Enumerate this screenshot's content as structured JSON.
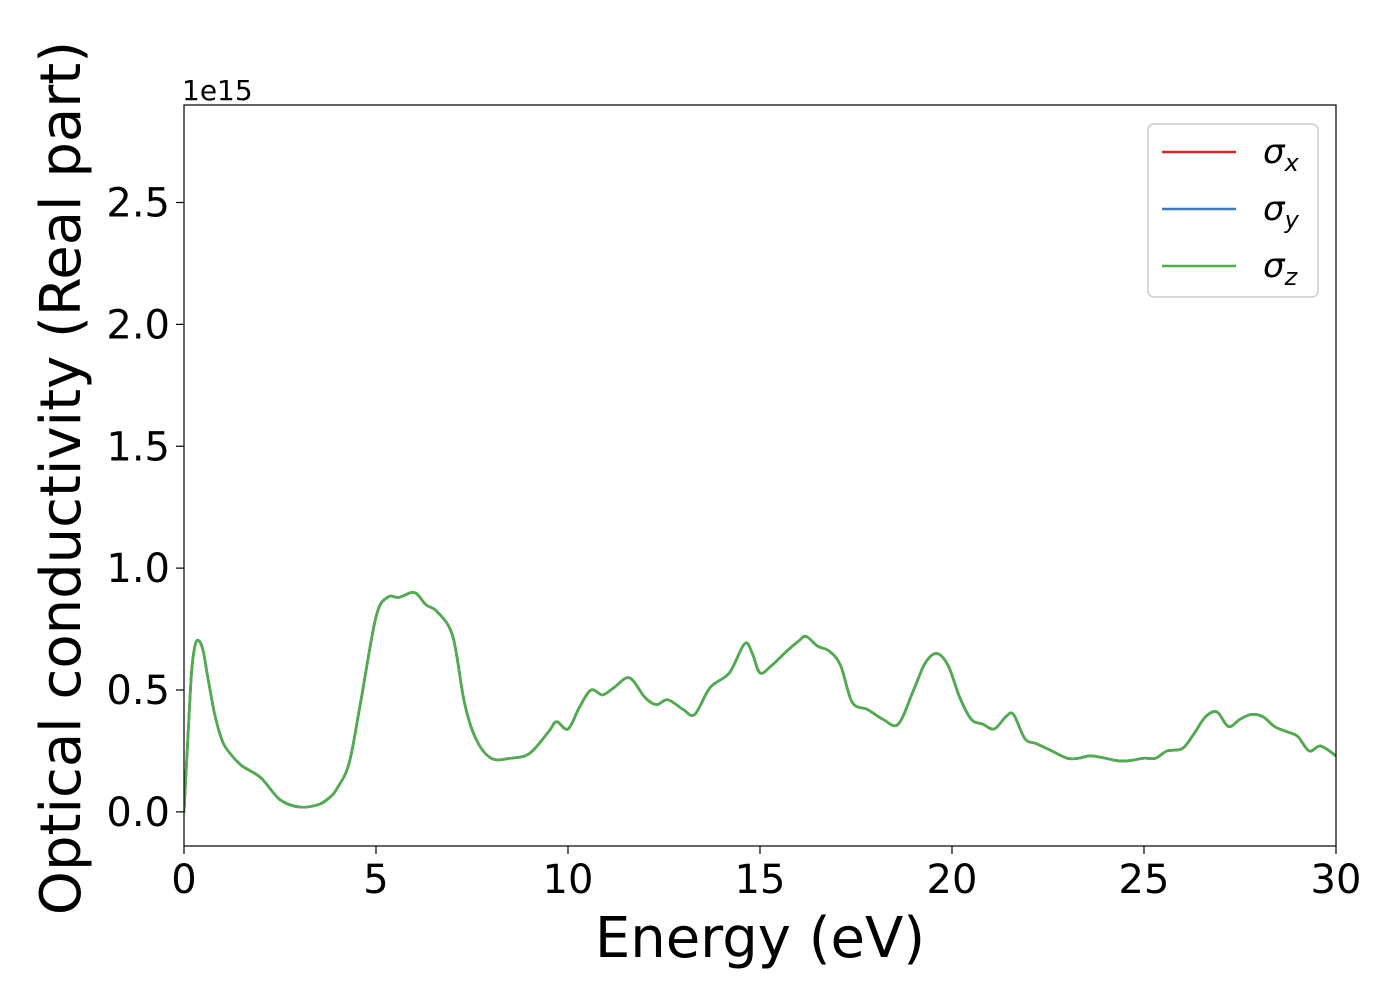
{
  "chart_data": {
    "type": "line",
    "title": "",
    "xlabel": "Energy (eV)",
    "ylabel": "Optical conductivity (Real part)",
    "offset_text": "1e15",
    "xlim": [
      0,
      30
    ],
    "ylim": [
      -0.14,
      2.9
    ],
    "xticks": [
      0,
      5,
      10,
      15,
      20,
      25,
      30
    ],
    "xtick_labels": [
      "0",
      "5",
      "10",
      "15",
      "20",
      "25",
      "30"
    ],
    "yticks": [
      0.0,
      0.5,
      1.0,
      1.5,
      2.0,
      2.5
    ],
    "ytick_labels": [
      "0.0",
      "0.5",
      "1.0",
      "1.5",
      "2.0",
      "2.5"
    ],
    "grid": false,
    "legend_position": "upper right",
    "series": [
      {
        "name": "σx",
        "legend_base": "σ",
        "legend_sub": "x",
        "color": "#d62728",
        "x": [
          0,
          0.1,
          0.2,
          0.3,
          0.4,
          0.5,
          0.6,
          0.8,
          1.0,
          1.2,
          1.5,
          2.0,
          2.5,
          3.0,
          3.5,
          3.8,
          4.0,
          4.3,
          4.6,
          5.0,
          5.3,
          5.6,
          6.0,
          6.3,
          6.6,
          7.0,
          7.3,
          7.6,
          8.0,
          8.5,
          9.0,
          9.5,
          9.7,
          10.0,
          10.3,
          10.6,
          10.9,
          11.2,
          11.6,
          12.0,
          12.3,
          12.6,
          13.0,
          13.3,
          13.7,
          14.2,
          14.6,
          14.8,
          15.0,
          15.3,
          15.7,
          16.0,
          16.2,
          16.5,
          16.8,
          17.1,
          17.4,
          17.8,
          18.2,
          18.6,
          19.0,
          19.3,
          19.6,
          19.9,
          20.2,
          20.5,
          20.8,
          21.1,
          21.4,
          21.6,
          21.9,
          22.2,
          22.6,
          23.0,
          23.3,
          23.6,
          24.0,
          24.3,
          24.6,
          25.0,
          25.3,
          25.6,
          26.0,
          26.3,
          26.6,
          26.9,
          27.2,
          27.5,
          27.8,
          28.1,
          28.4,
          28.7,
          29.0,
          29.3,
          29.6,
          30.0
        ],
        "y": [
          0.0,
          0.3,
          0.58,
          0.69,
          0.7,
          0.66,
          0.57,
          0.4,
          0.29,
          0.24,
          0.19,
          0.14,
          0.05,
          0.02,
          0.03,
          0.06,
          0.1,
          0.2,
          0.45,
          0.8,
          0.88,
          0.88,
          0.9,
          0.85,
          0.82,
          0.72,
          0.45,
          0.3,
          0.22,
          0.22,
          0.24,
          0.33,
          0.37,
          0.34,
          0.43,
          0.5,
          0.48,
          0.51,
          0.55,
          0.47,
          0.44,
          0.46,
          0.42,
          0.4,
          0.51,
          0.57,
          0.69,
          0.65,
          0.57,
          0.6,
          0.66,
          0.7,
          0.72,
          0.68,
          0.66,
          0.6,
          0.45,
          0.42,
          0.38,
          0.36,
          0.5,
          0.61,
          0.65,
          0.6,
          0.47,
          0.38,
          0.36,
          0.34,
          0.39,
          0.4,
          0.3,
          0.28,
          0.25,
          0.22,
          0.22,
          0.23,
          0.22,
          0.21,
          0.21,
          0.22,
          0.22,
          0.25,
          0.26,
          0.32,
          0.39,
          0.41,
          0.35,
          0.38,
          0.4,
          0.39,
          0.35,
          0.33,
          0.31,
          0.25,
          0.27,
          0.23
        ]
      },
      {
        "name": "σy",
        "legend_base": "σ",
        "legend_sub": "y",
        "color": "#3a7bbf",
        "x": [
          0,
          0.1,
          0.2,
          0.3,
          0.4,
          0.5,
          0.6,
          0.8,
          1.0,
          1.2,
          1.5,
          2.0,
          2.5,
          3.0,
          3.5,
          3.8,
          4.0,
          4.3,
          4.6,
          5.0,
          5.3,
          5.6,
          6.0,
          6.3,
          6.6,
          7.0,
          7.3,
          7.6,
          8.0,
          8.5,
          9.0,
          9.5,
          9.7,
          10.0,
          10.3,
          10.6,
          10.9,
          11.2,
          11.6,
          12.0,
          12.3,
          12.6,
          13.0,
          13.3,
          13.7,
          14.2,
          14.6,
          14.8,
          15.0,
          15.3,
          15.7,
          16.0,
          16.2,
          16.5,
          16.8,
          17.1,
          17.4,
          17.8,
          18.2,
          18.6,
          19.0,
          19.3,
          19.6,
          19.9,
          20.2,
          20.5,
          20.8,
          21.1,
          21.4,
          21.6,
          21.9,
          22.2,
          22.6,
          23.0,
          23.3,
          23.6,
          24.0,
          24.3,
          24.6,
          25.0,
          25.3,
          25.6,
          26.0,
          26.3,
          26.6,
          26.9,
          27.2,
          27.5,
          27.8,
          28.1,
          28.4,
          28.7,
          29.0,
          29.3,
          29.6,
          30.0
        ],
        "y": [
          0.0,
          0.3,
          0.58,
          0.69,
          0.7,
          0.66,
          0.57,
          0.4,
          0.29,
          0.24,
          0.19,
          0.14,
          0.05,
          0.02,
          0.03,
          0.06,
          0.1,
          0.2,
          0.45,
          0.8,
          0.88,
          0.88,
          0.9,
          0.85,
          0.82,
          0.72,
          0.45,
          0.3,
          0.22,
          0.22,
          0.24,
          0.33,
          0.37,
          0.34,
          0.43,
          0.5,
          0.48,
          0.51,
          0.55,
          0.47,
          0.44,
          0.46,
          0.42,
          0.4,
          0.51,
          0.57,
          0.69,
          0.65,
          0.57,
          0.6,
          0.66,
          0.7,
          0.72,
          0.68,
          0.66,
          0.6,
          0.45,
          0.42,
          0.38,
          0.36,
          0.5,
          0.61,
          0.65,
          0.6,
          0.47,
          0.38,
          0.36,
          0.34,
          0.39,
          0.4,
          0.3,
          0.28,
          0.25,
          0.22,
          0.22,
          0.23,
          0.22,
          0.21,
          0.21,
          0.22,
          0.22,
          0.25,
          0.26,
          0.32,
          0.39,
          0.41,
          0.35,
          0.38,
          0.4,
          0.39,
          0.35,
          0.33,
          0.31,
          0.25,
          0.27,
          0.23
        ]
      },
      {
        "name": "σz",
        "legend_base": "σ",
        "legend_sub": "z",
        "color": "#4daf4a",
        "x": [
          0,
          0.1,
          0.2,
          0.3,
          0.4,
          0.5,
          0.6,
          0.8,
          1.0,
          1.2,
          1.5,
          2.0,
          2.5,
          3.0,
          3.5,
          3.8,
          4.0,
          4.3,
          4.6,
          5.0,
          5.3,
          5.6,
          6.0,
          6.3,
          6.6,
          7.0,
          7.3,
          7.6,
          8.0,
          8.5,
          9.0,
          9.5,
          9.7,
          10.0,
          10.3,
          10.6,
          10.9,
          11.2,
          11.6,
          12.0,
          12.3,
          12.6,
          13.0,
          13.3,
          13.7,
          14.2,
          14.6,
          14.8,
          15.0,
          15.3,
          15.7,
          16.0,
          16.2,
          16.5,
          16.8,
          17.1,
          17.4,
          17.8,
          18.2,
          18.6,
          19.0,
          19.3,
          19.6,
          19.9,
          20.2,
          20.5,
          20.8,
          21.1,
          21.4,
          21.6,
          21.9,
          22.2,
          22.6,
          23.0,
          23.3,
          23.6,
          24.0,
          24.3,
          24.6,
          25.0,
          25.3,
          25.6,
          26.0,
          26.3,
          26.6,
          26.9,
          27.2,
          27.5,
          27.8,
          28.1,
          28.4,
          28.7,
          29.0,
          29.3,
          29.6,
          30.0
        ],
        "y": [
          0.0,
          0.3,
          0.58,
          0.69,
          0.7,
          0.66,
          0.57,
          0.4,
          0.29,
          0.24,
          0.19,
          0.14,
          0.05,
          0.02,
          0.03,
          0.06,
          0.1,
          0.2,
          0.45,
          0.8,
          0.88,
          0.88,
          0.9,
          0.85,
          0.82,
          0.72,
          0.45,
          0.3,
          0.22,
          0.22,
          0.24,
          0.33,
          0.37,
          0.34,
          0.43,
          0.5,
          0.48,
          0.51,
          0.55,
          0.47,
          0.44,
          0.46,
          0.42,
          0.4,
          0.51,
          0.57,
          0.69,
          0.65,
          0.57,
          0.6,
          0.66,
          0.7,
          0.72,
          0.68,
          0.66,
          0.6,
          0.45,
          0.42,
          0.38,
          0.36,
          0.5,
          0.61,
          0.65,
          0.6,
          0.47,
          0.38,
          0.36,
          0.34,
          0.39,
          0.4,
          0.3,
          0.28,
          0.25,
          0.22,
          0.22,
          0.23,
          0.22,
          0.21,
          0.21,
          0.22,
          0.22,
          0.25,
          0.26,
          0.32,
          0.39,
          0.41,
          0.35,
          0.38,
          0.4,
          0.39,
          0.35,
          0.33,
          0.31,
          0.25,
          0.27,
          0.23
        ]
      }
    ]
  }
}
